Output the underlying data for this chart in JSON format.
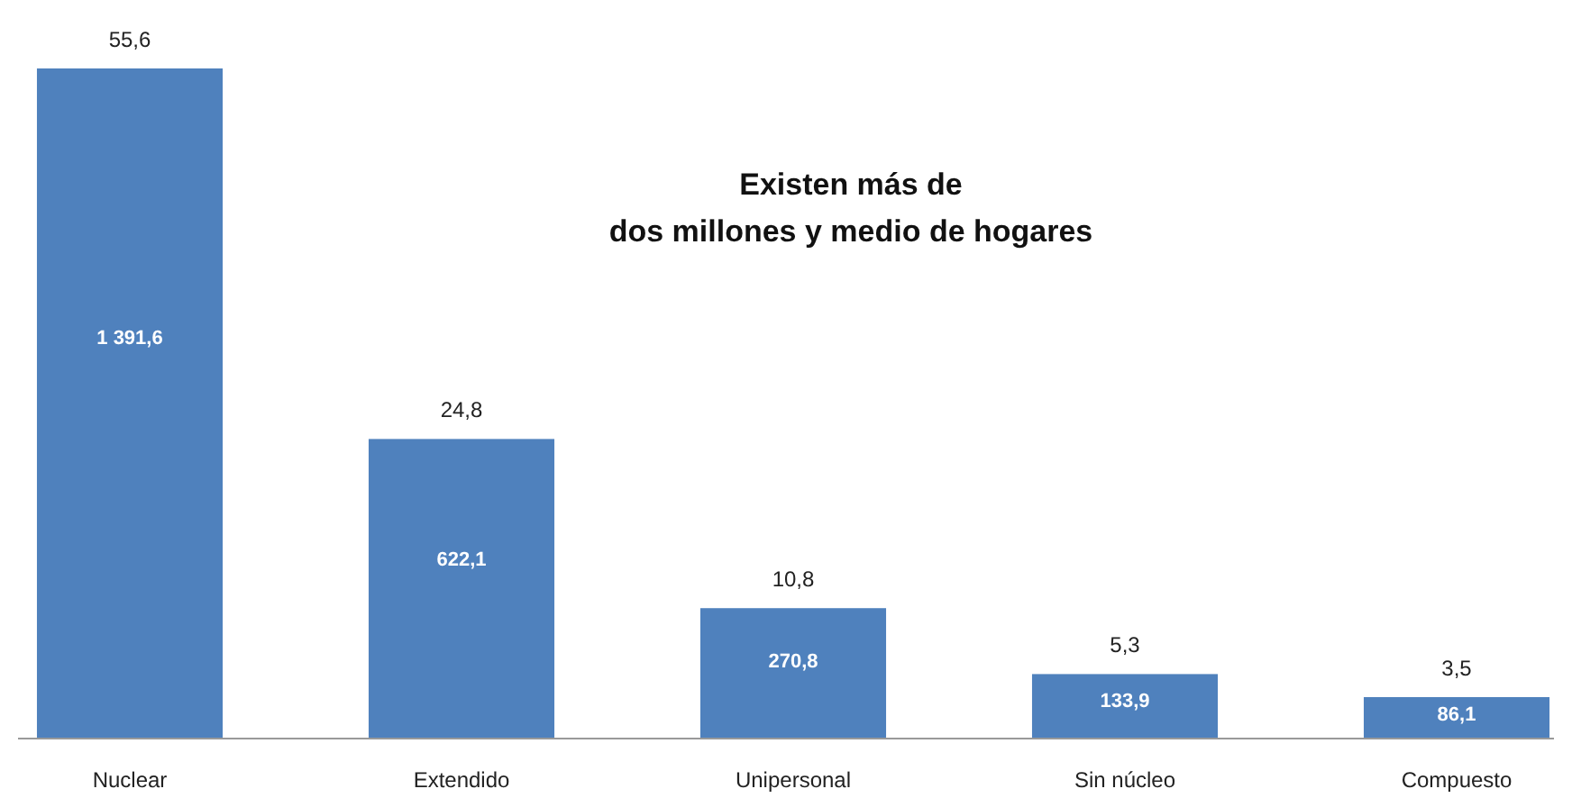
{
  "chart_data": {
    "type": "bar",
    "categories": [
      "Nuclear",
      "Extendido",
      "Unipersonal",
      "Sin núcleo",
      "Compuesto"
    ],
    "values": [
      1391.6,
      622.1,
      270.8,
      133.9,
      86.1
    ],
    "value_labels": [
      "1 391,6",
      "622,1",
      "270,8",
      "133,9",
      "86,1"
    ],
    "color": "#4f81bd",
    "annotations": [
      {
        "text": "55,6",
        "x": "Nuclear",
        "y": 1391.6
      },
      {
        "text": "24,8",
        "x": "Extendido",
        "y": 622.1
      },
      {
        "text": "10,8",
        "x": "Unipersonal",
        "y": 270.8
      },
      {
        "text": "5,3",
        "x": "Sin núcleo",
        "y": 133.9
      },
      {
        "text": "3,5",
        "x": "Compuesto",
        "y": 86.1
      },
      "Existen más de\ndos millones y medio de hogares"
    ]
  }
}
